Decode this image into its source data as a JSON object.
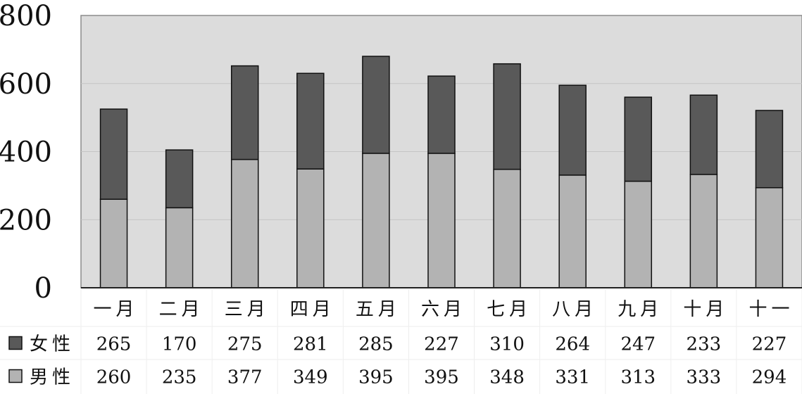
{
  "chart_data": {
    "type": "bar",
    "stacked": true,
    "categories": [
      "一月",
      "二月",
      "三月",
      "四月",
      "五月",
      "六月",
      "七月",
      "八月",
      "九月",
      "十月",
      "十一"
    ],
    "series": [
      {
        "name": "男性",
        "values": [
          260,
          235,
          377,
          349,
          395,
          395,
          348,
          331,
          313,
          333,
          294
        ],
        "color": "#b3b3b3"
      },
      {
        "name": "女性",
        "values": [
          265,
          170,
          275,
          281,
          285,
          227,
          310,
          264,
          247,
          233,
          227
        ],
        "color": "#595959"
      }
    ],
    "ylim": [
      0,
      800
    ],
    "yticks": [
      0,
      200,
      400,
      600,
      800
    ],
    "grid": true,
    "plot_background": "#dcdcdc",
    "data_table": true,
    "title": "",
    "xlabel": "",
    "ylabel": ""
  }
}
